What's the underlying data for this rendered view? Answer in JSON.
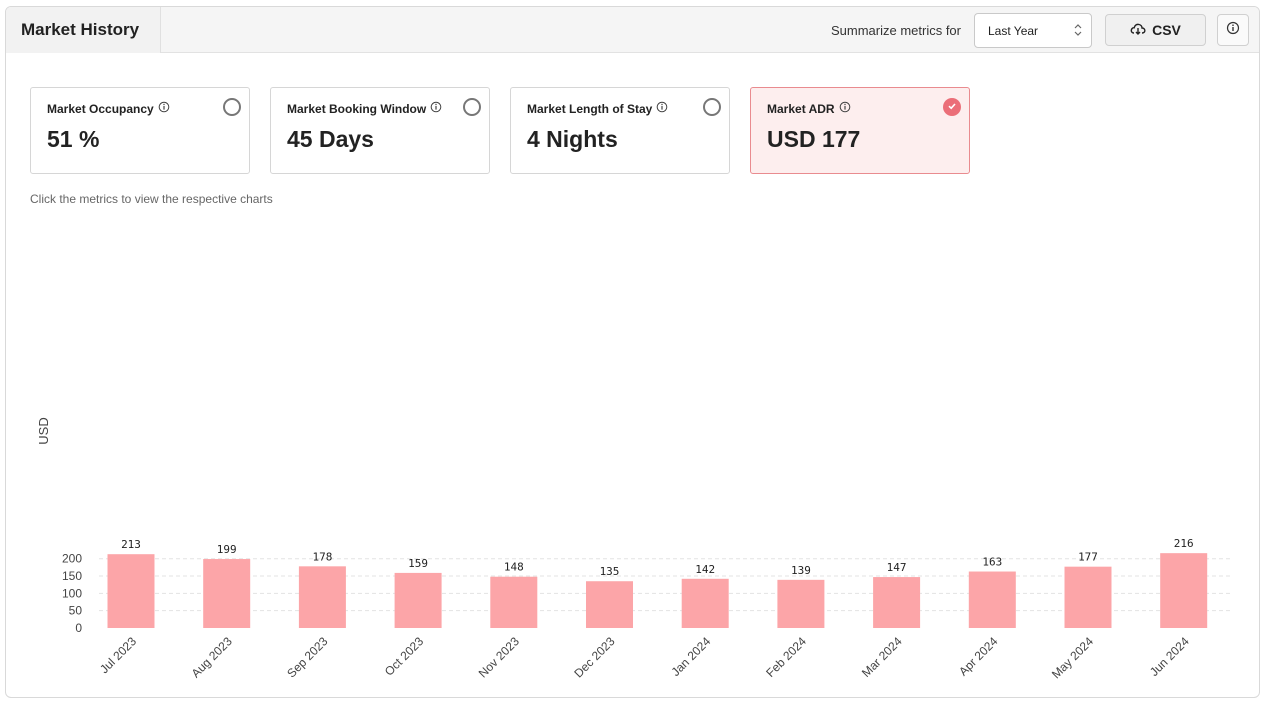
{
  "header": {
    "title": "Market History",
    "summarize_label": "Summarize metrics for",
    "period_select": "Last Year",
    "csv_label": "CSV"
  },
  "metrics": [
    {
      "label": "Market Occupancy",
      "value": "51 %",
      "selected": false
    },
    {
      "label": "Market Booking Window",
      "value": "45 Days",
      "selected": false
    },
    {
      "label": "Market Length of Stay",
      "value": "4 Nights",
      "selected": false
    },
    {
      "label": "Market ADR",
      "value": "USD 177",
      "selected": true
    }
  ],
  "hint": "Click the metrics to view the respective charts",
  "colors": {
    "accent": "#eb6e78",
    "bar": "#fca5a8",
    "selected_card_bg": "#fdeeee"
  },
  "chart_data": {
    "type": "bar",
    "categories": [
      "Jul 2023",
      "Aug 2023",
      "Sep 2023",
      "Oct 2023",
      "Nov 2023",
      "Dec 2023",
      "Jan 2024",
      "Feb 2024",
      "Mar 2024",
      "Apr 2024",
      "May 2024",
      "Jun 2024"
    ],
    "values": [
      213,
      199,
      178,
      159,
      148,
      135,
      142,
      139,
      147,
      163,
      177,
      216
    ],
    "ylabel": "USD",
    "yticks": [
      0,
      50,
      100,
      150,
      200
    ],
    "ylim": [
      0,
      216
    ],
    "grid": true
  }
}
